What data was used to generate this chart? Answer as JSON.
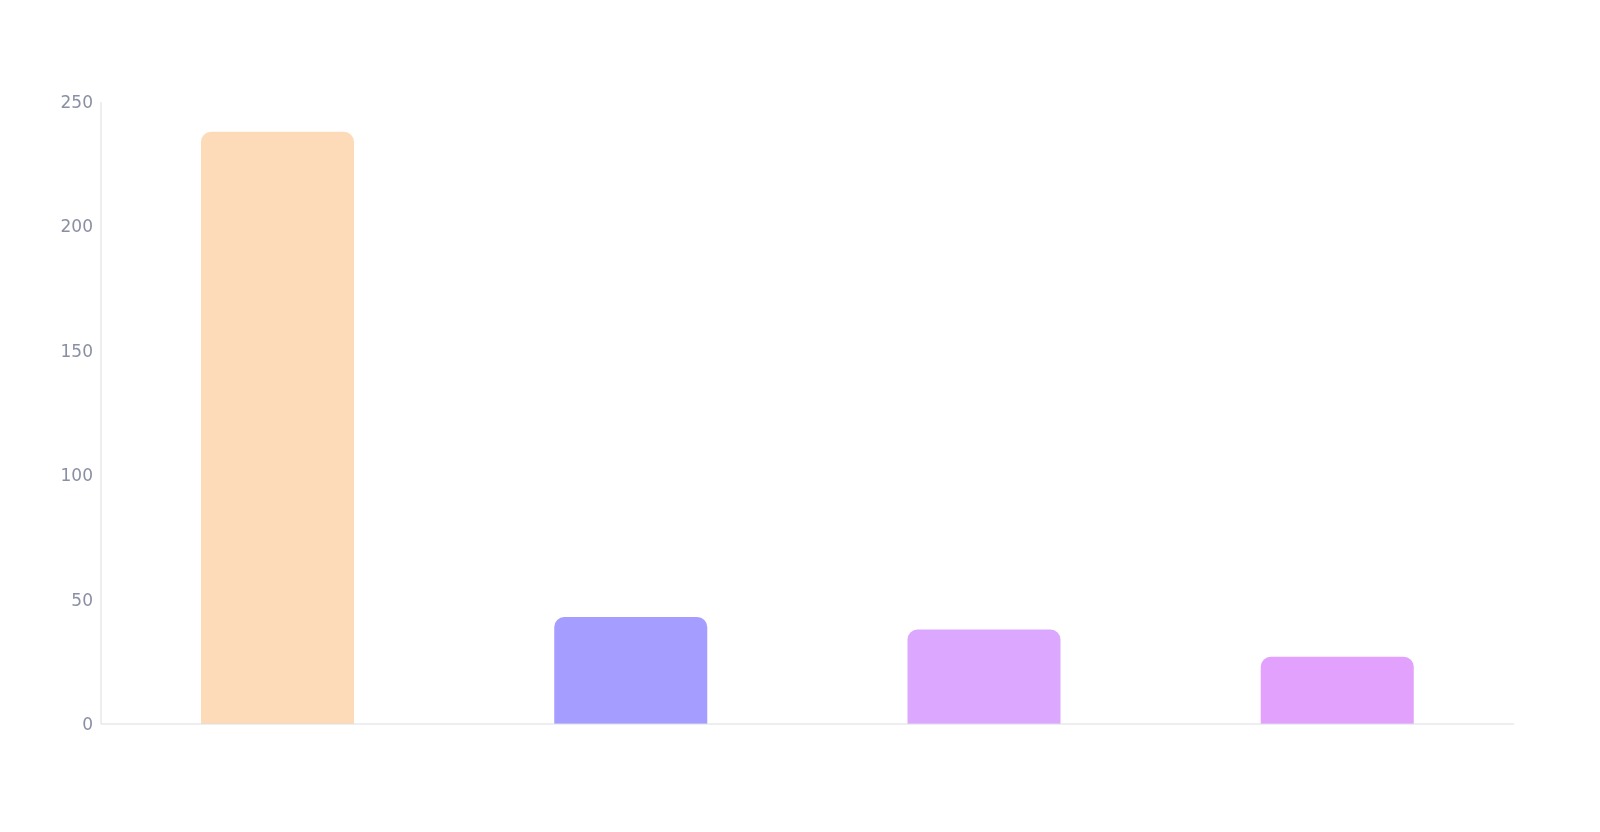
{
  "chart_data": {
    "type": "bar",
    "categories": [
      null,
      null,
      null,
      null
    ],
    "values": [
      238,
      43,
      38,
      27
    ],
    "colors": [
      "#fddbb9",
      "#a59dff",
      "#dca8ff",
      "#e2a1fc"
    ],
    "ylim": [
      0,
      250
    ],
    "yticks": [
      0,
      50,
      100,
      150,
      200,
      250
    ],
    "grid": false,
    "legend": false
  }
}
